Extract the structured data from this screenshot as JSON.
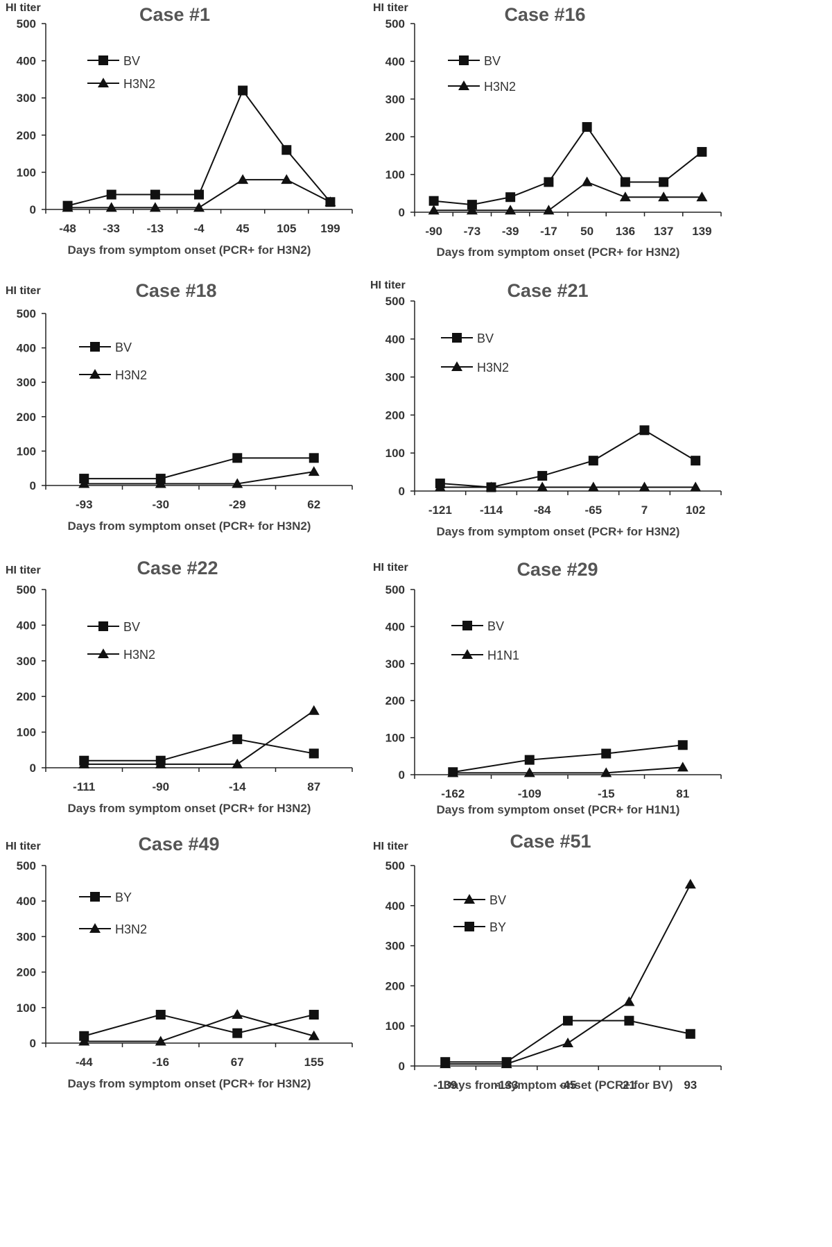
{
  "chart_data": [
    {
      "type": "line",
      "title": "Case #1",
      "ylabel": "HI titer",
      "xlabel": "Days from symptom onset (PCR+ for H3N2)",
      "categories": [
        "-48",
        "-33",
        "-13",
        "-4",
        "45",
        "105",
        "199"
      ],
      "ylim": [
        0,
        500
      ],
      "yticks": [
        "0",
        "100",
        "200",
        "300",
        "400",
        "500"
      ],
      "legend": "top-left",
      "grid": false,
      "series": [
        {
          "name": "BV",
          "marker": "square",
          "values": [
            10,
            40,
            40,
            40,
            320,
            160,
            20
          ]
        },
        {
          "name": "H3N2",
          "marker": "triangle",
          "values": [
            5,
            5,
            5,
            5,
            80,
            80,
            20
          ]
        }
      ]
    },
    {
      "type": "line",
      "title": "Case #16",
      "ylabel": "HI titer",
      "xlabel": "Days from symptom onset (PCR+ for H3N2)",
      "categories": [
        "-90",
        "-73",
        "-39",
        "-17",
        "50",
        "136",
        "137",
        "139"
      ],
      "ylim": [
        0,
        500
      ],
      "yticks": [
        "0",
        "100",
        "200",
        "300",
        "400",
        "500"
      ],
      "legend": "top-left",
      "grid": false,
      "series": [
        {
          "name": "BV",
          "marker": "square",
          "values": [
            30,
            20,
            40,
            80,
            226,
            80,
            80,
            160
          ]
        },
        {
          "name": "H3N2",
          "marker": "triangle",
          "values": [
            5,
            5,
            5,
            5,
            80,
            40,
            40,
            40
          ]
        }
      ]
    },
    {
      "type": "line",
      "title": "Case #18",
      "ylabel": "HI titer",
      "xlabel": "Days from symptom onset (PCR+ for H3N2)",
      "categories": [
        "-93",
        "-30",
        "-29",
        "62"
      ],
      "ylim": [
        0,
        500
      ],
      "yticks": [
        "0",
        "100",
        "200",
        "300",
        "400",
        "500"
      ],
      "legend": "top-left",
      "grid": false,
      "series": [
        {
          "name": "BV",
          "marker": "square",
          "values": [
            20,
            20,
            80,
            80
          ]
        },
        {
          "name": "H3N2",
          "marker": "triangle",
          "values": [
            5,
            5,
            5,
            40
          ]
        }
      ]
    },
    {
      "type": "line",
      "title": "Case #21",
      "ylabel": "HI titer",
      "xlabel": "Days from symptom onset (PCR+ for H3N2)",
      "categories": [
        "-121",
        "-114",
        "-84",
        "-65",
        "7",
        "102"
      ],
      "ylim": [
        0,
        500
      ],
      "yticks": [
        "0",
        "100",
        "200",
        "300",
        "400",
        "500"
      ],
      "legend": "top-left",
      "grid": false,
      "series": [
        {
          "name": "BV",
          "marker": "square",
          "values": [
            20,
            10,
            40,
            80,
            160,
            80
          ]
        },
        {
          "name": "H3N2",
          "marker": "triangle",
          "values": [
            10,
            10,
            10,
            10,
            10,
            10
          ]
        }
      ]
    },
    {
      "type": "line",
      "title": "Case #22",
      "ylabel": "HI titer",
      "xlabel": "Days from symptom onset (PCR+ for H3N2)",
      "categories": [
        "-111",
        "-90",
        "-14",
        "87"
      ],
      "ylim": [
        0,
        500
      ],
      "yticks": [
        "0",
        "100",
        "200",
        "300",
        "400",
        "500"
      ],
      "legend": "top-left",
      "grid": false,
      "series": [
        {
          "name": "BV",
          "marker": "square",
          "values": [
            20,
            20,
            80,
            40
          ]
        },
        {
          "name": "H3N2",
          "marker": "triangle",
          "values": [
            10,
            10,
            10,
            160
          ]
        }
      ]
    },
    {
      "type": "line",
      "title": "Case #29",
      "ylabel": "HI titer",
      "xlabel": "Days from symptom onset (PCR+ for H1N1)",
      "categories": [
        "-162",
        "-109",
        "-15",
        "81"
      ],
      "ylim": [
        0,
        500
      ],
      "yticks": [
        "0",
        "100",
        "200",
        "300",
        "400",
        "500"
      ],
      "legend": "top-left",
      "grid": false,
      "series": [
        {
          "name": "BV",
          "marker": "square",
          "values": [
            7,
            40,
            57,
            80
          ]
        },
        {
          "name": "H1N1",
          "marker": "triangle",
          "values": [
            5,
            5,
            5,
            20
          ]
        }
      ]
    },
    {
      "type": "line",
      "title": "Case #49",
      "ylabel": "HI titer",
      "xlabel": "Days from symptom onset (PCR+ for H3N2)",
      "categories": [
        "-44",
        "-16",
        "67",
        "155"
      ],
      "ylim": [
        0,
        500
      ],
      "yticks": [
        "0",
        "100",
        "200",
        "300",
        "400",
        "500"
      ],
      "legend": "top-left",
      "grid": false,
      "series": [
        {
          "name": "BY",
          "marker": "square",
          "values": [
            20,
            80,
            28,
            80
          ]
        },
        {
          "name": "H3N2",
          "marker": "triangle",
          "values": [
            5,
            5,
            80,
            20
          ]
        }
      ]
    },
    {
      "type": "line",
      "title": "Case #51",
      "ylabel": "HI titer",
      "xlabel": "Days from symptom onset (PCR+ for BV)",
      "categories": [
        "-139",
        "-133",
        "-45",
        "21",
        "93"
      ],
      "ylim": [
        0,
        500
      ],
      "yticks": [
        "0",
        "100",
        "200",
        "300",
        "400",
        "500"
      ],
      "legend": "top-left",
      "grid": false,
      "series": [
        {
          "name": "BV",
          "marker": "triangle",
          "values": [
            5,
            5,
            57,
            160,
            453
          ]
        },
        {
          "name": "BY",
          "marker": "square",
          "values": [
            10,
            10,
            113,
            113,
            80
          ]
        }
      ]
    }
  ]
}
